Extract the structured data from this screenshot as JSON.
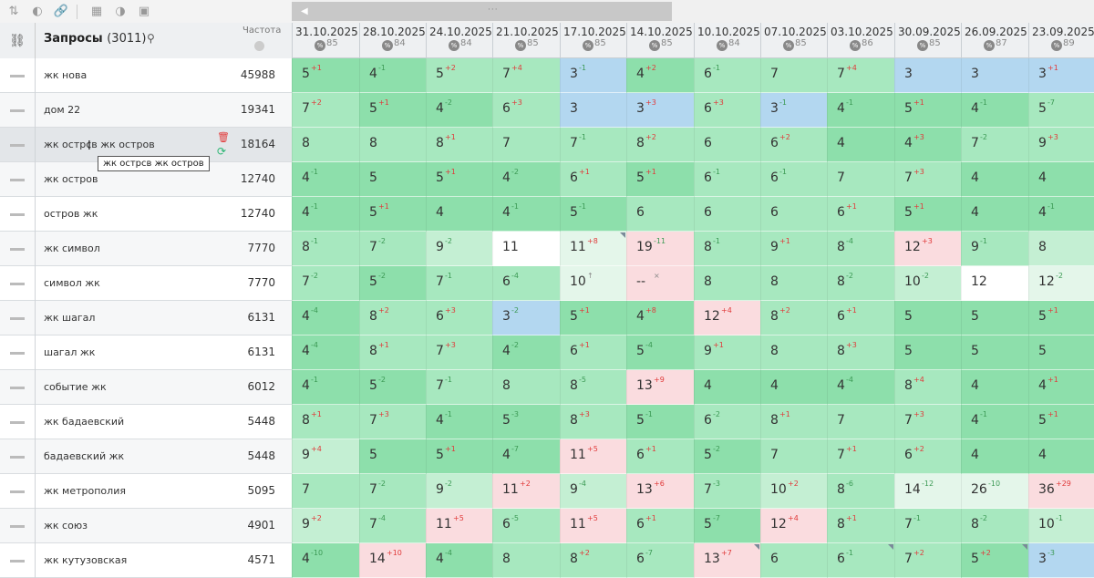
{
  "toolbar": {
    "icons": [
      "sort-icon",
      "toggle-icon",
      "link-icon",
      "calculator-icon",
      "contrast-icon",
      "image-icon"
    ]
  },
  "header": {
    "title": "Запросы",
    "count": "(3011)",
    "freq_label": "Частота"
  },
  "dates": [
    {
      "date": "31.10.2025",
      "score": "85"
    },
    {
      "date": "28.10.2025",
      "score": "84"
    },
    {
      "date": "24.10.2025",
      "score": "84"
    },
    {
      "date": "21.10.2025",
      "score": "85"
    },
    {
      "date": "17.10.2025",
      "score": "85"
    },
    {
      "date": "14.10.2025",
      "score": "85"
    },
    {
      "date": "10.10.2025",
      "score": "84"
    },
    {
      "date": "07.10.2025",
      "score": "85"
    },
    {
      "date": "03.10.2025",
      "score": "86"
    },
    {
      "date": "30.09.2025",
      "score": "85"
    },
    {
      "date": "26.09.2025",
      "score": "87"
    },
    {
      "date": "23.09.2025",
      "score": "89"
    }
  ],
  "badge_symbol": "%",
  "tooltip": "жк острсв жк острoв",
  "rows": [
    {
      "query": "жк нова",
      "freq": "45988",
      "cells": [
        [
          "5",
          "+1",
          "g1"
        ],
        [
          "4",
          "-1",
          "g1"
        ],
        [
          "5",
          "+2",
          "g2"
        ],
        [
          "7",
          "+4",
          "g2"
        ],
        [
          "3",
          "-1",
          "bl"
        ],
        [
          "4",
          "+2",
          "g1"
        ],
        [
          "6",
          "-1",
          "g2"
        ],
        [
          "7",
          "",
          "g2"
        ],
        [
          "7",
          "+4",
          "g2"
        ],
        [
          "3",
          "",
          "bl"
        ],
        [
          "3",
          "",
          "bl"
        ],
        [
          "3",
          "+1",
          "bl"
        ]
      ]
    },
    {
      "query": "дом 22",
      "freq": "19341",
      "cells": [
        [
          "7",
          "+2",
          "g2"
        ],
        [
          "5",
          "+1",
          "g1"
        ],
        [
          "4",
          "-2",
          "g1"
        ],
        [
          "6",
          "+3",
          "g2"
        ],
        [
          "3",
          "",
          "bl"
        ],
        [
          "3",
          "+3",
          "bl"
        ],
        [
          "6",
          "+3",
          "g2"
        ],
        [
          "3",
          "-1",
          "bl"
        ],
        [
          "4",
          "-1",
          "g1"
        ],
        [
          "5",
          "+1",
          "g1"
        ],
        [
          "4",
          "-1",
          "g1"
        ],
        [
          "5",
          "-7",
          "g2"
        ]
      ]
    },
    {
      "query": "жк острсв жк острoв",
      "freq": "18164",
      "cells": [
        [
          "8",
          "",
          "g2"
        ],
        [
          "8",
          "",
          "g2"
        ],
        [
          "8",
          "+1",
          "g2"
        ],
        [
          "7",
          "",
          "g2"
        ],
        [
          "7",
          "-1",
          "g2"
        ],
        [
          "8",
          "+2",
          "g2"
        ],
        [
          "6",
          "",
          "g2"
        ],
        [
          "6",
          "+2",
          "g2"
        ],
        [
          "4",
          "",
          "g1"
        ],
        [
          "4",
          "+3",
          "g1"
        ],
        [
          "7",
          "-2",
          "g2"
        ],
        [
          "9",
          "+3",
          "g2"
        ]
      ]
    },
    {
      "query": "жк остров",
      "freq": "12740",
      "cells": [
        [
          "4",
          "-1",
          "g1"
        ],
        [
          "5",
          "",
          "g1"
        ],
        [
          "5",
          "+1",
          "g1"
        ],
        [
          "4",
          "-2",
          "g1"
        ],
        [
          "6",
          "+1",
          "g2"
        ],
        [
          "5",
          "+1",
          "g1"
        ],
        [
          "6",
          "-1",
          "g2"
        ],
        [
          "6",
          "-1",
          "g2"
        ],
        [
          "7",
          "",
          "g2"
        ],
        [
          "7",
          "+3",
          "g2"
        ],
        [
          "4",
          "",
          "g1"
        ],
        [
          "4",
          "",
          "g1"
        ]
      ]
    },
    {
      "query": "остров жк",
      "freq": "12740",
      "cells": [
        [
          "4",
          "-1",
          "g1"
        ],
        [
          "5",
          "+1",
          "g1"
        ],
        [
          "4",
          "",
          "g1"
        ],
        [
          "4",
          "-1",
          "g1"
        ],
        [
          "5",
          "-1",
          "g1"
        ],
        [
          "6",
          "",
          "g2"
        ],
        [
          "6",
          "",
          "g2"
        ],
        [
          "6",
          "",
          "g2"
        ],
        [
          "6",
          "+1",
          "g2"
        ],
        [
          "5",
          "+1",
          "g1"
        ],
        [
          "4",
          "",
          "g1"
        ],
        [
          "4",
          "-1",
          "g1"
        ]
      ]
    },
    {
      "query": "жк символ",
      "freq": "7770",
      "cells": [
        [
          "8",
          "-1",
          "g2"
        ],
        [
          "7",
          "-2",
          "g2"
        ],
        [
          "9",
          "-2",
          "g3"
        ],
        [
          "11",
          "",
          "wh"
        ],
        [
          "11",
          "+8",
          "lg"
        ],
        [
          "19",
          "-11",
          "pk"
        ],
        [
          "8",
          "-1",
          "g2"
        ],
        [
          "9",
          "+1",
          "g2"
        ],
        [
          "8",
          "-4",
          "g2"
        ],
        [
          "12",
          "+3",
          "pk"
        ],
        [
          "9",
          "-1",
          "g2"
        ],
        [
          "8",
          "",
          "g3"
        ]
      ]
    },
    {
      "query": "символ жк",
      "freq": "7770",
      "cells": [
        [
          "7",
          "-2",
          "g2"
        ],
        [
          "5",
          "-2",
          "g1"
        ],
        [
          "7",
          "-1",
          "g2"
        ],
        [
          "6",
          "-4",
          "g2"
        ],
        [
          "10",
          "↑",
          "lg"
        ],
        [
          "--",
          "×",
          "pk"
        ],
        [
          "8",
          "",
          "g2"
        ],
        [
          "8",
          "",
          "g2"
        ],
        [
          "8",
          "-2",
          "g2"
        ],
        [
          "10",
          "-2",
          "g3"
        ],
        [
          "12",
          "",
          "wh"
        ],
        [
          "12",
          "-2",
          "lg"
        ]
      ]
    },
    {
      "query": "жк шагал",
      "freq": "6131",
      "cells": [
        [
          "4",
          "-4",
          "g1"
        ],
        [
          "8",
          "+2",
          "g2"
        ],
        [
          "6",
          "+3",
          "g2"
        ],
        [
          "3",
          "-2",
          "bl"
        ],
        [
          "5",
          "+1",
          "g1"
        ],
        [
          "4",
          "+8",
          "g1"
        ],
        [
          "12",
          "+4",
          "pk"
        ],
        [
          "8",
          "+2",
          "g2"
        ],
        [
          "6",
          "+1",
          "g2"
        ],
        [
          "5",
          "",
          "g1"
        ],
        [
          "5",
          "",
          "g1"
        ],
        [
          "5",
          "+1",
          "g1"
        ]
      ]
    },
    {
      "query": "шагал жк",
      "freq": "6131",
      "cells": [
        [
          "4",
          "-4",
          "g1"
        ],
        [
          "8",
          "+1",
          "g2"
        ],
        [
          "7",
          "+3",
          "g2"
        ],
        [
          "4",
          "-2",
          "g1"
        ],
        [
          "6",
          "+1",
          "g2"
        ],
        [
          "5",
          "-4",
          "g1"
        ],
        [
          "9",
          "+1",
          "g2"
        ],
        [
          "8",
          "",
          "g2"
        ],
        [
          "8",
          "+3",
          "g2"
        ],
        [
          "5",
          "",
          "g1"
        ],
        [
          "5",
          "",
          "g1"
        ],
        [
          "5",
          "",
          "g1"
        ]
      ]
    },
    {
      "query": "событие жк",
      "freq": "6012",
      "cells": [
        [
          "4",
          "-1",
          "g1"
        ],
        [
          "5",
          "-2",
          "g1"
        ],
        [
          "7",
          "-1",
          "g2"
        ],
        [
          "8",
          "",
          "g2"
        ],
        [
          "8",
          "-5",
          "g2"
        ],
        [
          "13",
          "+9",
          "pk"
        ],
        [
          "4",
          "",
          "g1"
        ],
        [
          "4",
          "",
          "g1"
        ],
        [
          "4",
          "-4",
          "g1"
        ],
        [
          "8",
          "+4",
          "g2"
        ],
        [
          "4",
          "",
          "g1"
        ],
        [
          "4",
          "+1",
          "g1"
        ]
      ]
    },
    {
      "query": "жк бадаевский",
      "freq": "5448",
      "cells": [
        [
          "8",
          "+1",
          "g2"
        ],
        [
          "7",
          "+3",
          "g2"
        ],
        [
          "4",
          "-1",
          "g1"
        ],
        [
          "5",
          "-3",
          "g1"
        ],
        [
          "8",
          "+3",
          "g2"
        ],
        [
          "5",
          "-1",
          "g1"
        ],
        [
          "6",
          "-2",
          "g2"
        ],
        [
          "8",
          "+1",
          "g2"
        ],
        [
          "7",
          "",
          "g2"
        ],
        [
          "7",
          "+3",
          "g2"
        ],
        [
          "4",
          "-1",
          "g1"
        ],
        [
          "5",
          "+1",
          "g1"
        ]
      ]
    },
    {
      "query": "бадаевский жк",
      "freq": "5448",
      "cells": [
        [
          "9",
          "+4",
          "g3"
        ],
        [
          "5",
          "",
          "g1"
        ],
        [
          "5",
          "+1",
          "g1"
        ],
        [
          "4",
          "-7",
          "g1"
        ],
        [
          "11",
          "+5",
          "pk"
        ],
        [
          "6",
          "+1",
          "g2"
        ],
        [
          "5",
          "-2",
          "g1"
        ],
        [
          "7",
          "",
          "g2"
        ],
        [
          "7",
          "+1",
          "g2"
        ],
        [
          "6",
          "+2",
          "g2"
        ],
        [
          "4",
          "",
          "g1"
        ],
        [
          "4",
          "",
          "g1"
        ]
      ]
    },
    {
      "query": "жк метрополия",
      "freq": "5095",
      "cells": [
        [
          "7",
          "",
          "g2"
        ],
        [
          "7",
          "-2",
          "g2"
        ],
        [
          "9",
          "-2",
          "g3"
        ],
        [
          "11",
          "+2",
          "pk"
        ],
        [
          "9",
          "-4",
          "g3"
        ],
        [
          "13",
          "+6",
          "pk"
        ],
        [
          "7",
          "-3",
          "g2"
        ],
        [
          "10",
          "+2",
          "g3"
        ],
        [
          "8",
          "-6",
          "g2"
        ],
        [
          "14",
          "-12",
          "lg"
        ],
        [
          "26",
          "-10",
          "lg"
        ],
        [
          "36",
          "+29",
          "pk"
        ]
      ]
    },
    {
      "query": "жк союз",
      "freq": "4901",
      "cells": [
        [
          "9",
          "+2",
          "g3"
        ],
        [
          "7",
          "-4",
          "g2"
        ],
        [
          "11",
          "+5",
          "pk"
        ],
        [
          "6",
          "-5",
          "g2"
        ],
        [
          "11",
          "+5",
          "pk"
        ],
        [
          "6",
          "+1",
          "g2"
        ],
        [
          "5",
          "-7",
          "g1"
        ],
        [
          "12",
          "+4",
          "pk"
        ],
        [
          "8",
          "+1",
          "g2"
        ],
        [
          "7",
          "-1",
          "g2"
        ],
        [
          "8",
          "-2",
          "g2"
        ],
        [
          "10",
          "-1",
          "g3"
        ]
      ]
    },
    {
      "query": "жк кутузовская",
      "freq": "4571",
      "cells": [
        [
          "4",
          "-10",
          "g1"
        ],
        [
          "14",
          "+10",
          "pk"
        ],
        [
          "4",
          "-4",
          "g1"
        ],
        [
          "8",
          "",
          "g2"
        ],
        [
          "8",
          "+2",
          "g2"
        ],
        [
          "6",
          "-7",
          "g2"
        ],
        [
          "13",
          "+7",
          "pk"
        ],
        [
          "6",
          "",
          "g2"
        ],
        [
          "6",
          "-1",
          "g2"
        ],
        [
          "7",
          "+2",
          "g2"
        ],
        [
          "5",
          "+2",
          "g1"
        ],
        [
          "3",
          "-3",
          "bl"
        ]
      ]
    }
  ]
}
